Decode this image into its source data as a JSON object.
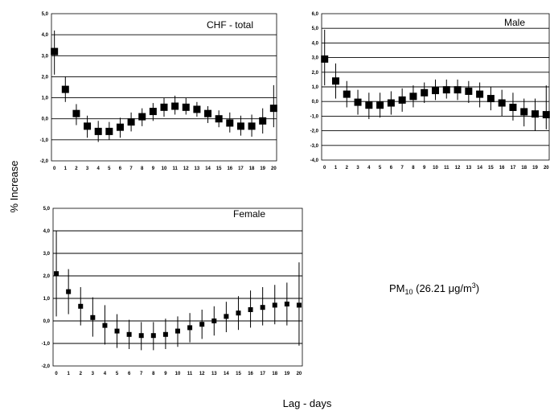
{
  "ylabel": "% Increase",
  "xlabel": "Lag - days",
  "note": {
    "pm": "PM",
    "sub": "10",
    "rest": " (26.21 ",
    "mu": "μ",
    "unit": "g/m",
    "sup": "3",
    "close": ")"
  },
  "chart_data": [
    {
      "type": "scatter",
      "title": "CHF - total",
      "x": [
        0,
        1,
        2,
        3,
        4,
        5,
        6,
        7,
        8,
        9,
        10,
        11,
        12,
        13,
        14,
        15,
        16,
        17,
        18,
        19,
        20
      ],
      "y": [
        3.2,
        1.4,
        0.25,
        -0.35,
        -0.6,
        -0.6,
        -0.4,
        -0.15,
        0.1,
        0.35,
        0.55,
        0.6,
        0.55,
        0.45,
        0.25,
        0.0,
        -0.2,
        -0.35,
        -0.35,
        -0.1,
        0.5
      ],
      "lower": [
        2.1,
        0.8,
        -0.3,
        -0.9,
        -1.1,
        -1.0,
        -0.9,
        -0.6,
        -0.35,
        -0.1,
        0.1,
        0.2,
        0.2,
        0.1,
        -0.2,
        -0.4,
        -0.65,
        -0.8,
        -0.85,
        -0.7,
        -0.4
      ],
      "upper": [
        4.2,
        2.0,
        0.7,
        0.15,
        -0.1,
        -0.15,
        0.05,
        0.3,
        0.5,
        0.75,
        1.0,
        1.1,
        1.0,
        0.8,
        0.6,
        0.4,
        0.3,
        0.15,
        0.2,
        0.5,
        1.6
      ],
      "ylim": [
        -2,
        5
      ],
      "yticks": [
        "-2,0",
        "-1,0",
        "0,0",
        "1,0",
        "2,0",
        "3,0",
        "4,0",
        "5,0"
      ],
      "xticks": [
        "0",
        "1",
        "2",
        "3",
        "4",
        "5",
        "6",
        "7",
        "8",
        "9",
        "10",
        "11",
        "12",
        "13",
        "14",
        "15",
        "16",
        "17",
        "18",
        "19",
        "20"
      ],
      "grid": "horizontal"
    },
    {
      "type": "scatter",
      "title": "Male",
      "x": [
        0,
        1,
        2,
        3,
        4,
        5,
        6,
        7,
        8,
        9,
        10,
        11,
        12,
        13,
        14,
        15,
        16,
        17,
        18,
        19,
        20
      ],
      "y": [
        2.9,
        1.4,
        0.5,
        -0.05,
        -0.25,
        -0.25,
        -0.1,
        0.1,
        0.35,
        0.6,
        0.75,
        0.8,
        0.8,
        0.7,
        0.5,
        0.2,
        -0.1,
        -0.4,
        -0.7,
        -0.85,
        -0.9
      ],
      "lower": [
        1.1,
        0.2,
        -0.4,
        -0.9,
        -1.2,
        -1.1,
        -0.9,
        -0.7,
        -0.4,
        -0.1,
        0.1,
        0.2,
        0.1,
        -0.1,
        -0.4,
        -0.6,
        -1.0,
        -1.3,
        -1.7,
        -2.0,
        -1.9
      ],
      "upper": [
        4.9,
        2.6,
        1.4,
        0.8,
        0.6,
        0.6,
        0.7,
        0.9,
        1.1,
        1.3,
        1.5,
        1.5,
        1.5,
        1.4,
        1.3,
        1.0,
        0.8,
        0.6,
        0.2,
        0.2,
        1.1
      ],
      "ylim": [
        -4,
        6
      ],
      "yticks": [
        "-4,0",
        "-3,0",
        "-2,0",
        "-1,0",
        "0,0",
        "1,0",
        "2,0",
        "3,0",
        "4,0",
        "5,0",
        "6,0"
      ],
      "xticks": [
        "0",
        "1",
        "2",
        "3",
        "4",
        "5",
        "6",
        "7",
        "8",
        "9",
        "10",
        "11",
        "12",
        "13",
        "14",
        "15",
        "16",
        "17",
        "18",
        "19",
        "20"
      ],
      "grid": "horizontal"
    },
    {
      "type": "scatter",
      "title": "Female",
      "x": [
        0,
        1,
        2,
        3,
        4,
        5,
        6,
        7,
        8,
        9,
        10,
        11,
        12,
        13,
        14,
        15,
        16,
        17,
        18,
        19,
        20
      ],
      "y": [
        2.1,
        1.3,
        0.65,
        0.15,
        -0.2,
        -0.45,
        -0.6,
        -0.65,
        -0.65,
        -0.6,
        -0.45,
        -0.3,
        -0.15,
        0.0,
        0.2,
        0.35,
        0.5,
        0.6,
        0.7,
        0.75,
        0.7
      ],
      "lower": [
        0.2,
        0.3,
        -0.2,
        -0.7,
        -1.05,
        -1.2,
        -1.25,
        -1.3,
        -1.3,
        -1.25,
        -1.15,
        -0.95,
        -0.8,
        -0.65,
        -0.5,
        -0.4,
        -0.3,
        -0.2,
        -0.15,
        -0.2,
        -1.1
      ],
      "upper": [
        4.0,
        2.3,
        1.5,
        1.05,
        0.7,
        0.3,
        0.05,
        -0.05,
        -0.05,
        0.1,
        0.2,
        0.35,
        0.5,
        0.65,
        0.85,
        1.1,
        1.35,
        1.5,
        1.6,
        1.7,
        2.6
      ],
      "ylim": [
        -2,
        5
      ],
      "yticks": [
        "-2,0",
        "-1,0",
        "0,0",
        "1,0",
        "2,0",
        "3,0",
        "4,0",
        "5,0"
      ],
      "xticks": [
        "0",
        "1",
        "2",
        "3",
        "4",
        "5",
        "6",
        "7",
        "8",
        "9",
        "10",
        "11",
        "12",
        "13",
        "14",
        "15",
        "16",
        "17",
        "18",
        "19",
        "20"
      ],
      "grid": "horizontal"
    }
  ]
}
